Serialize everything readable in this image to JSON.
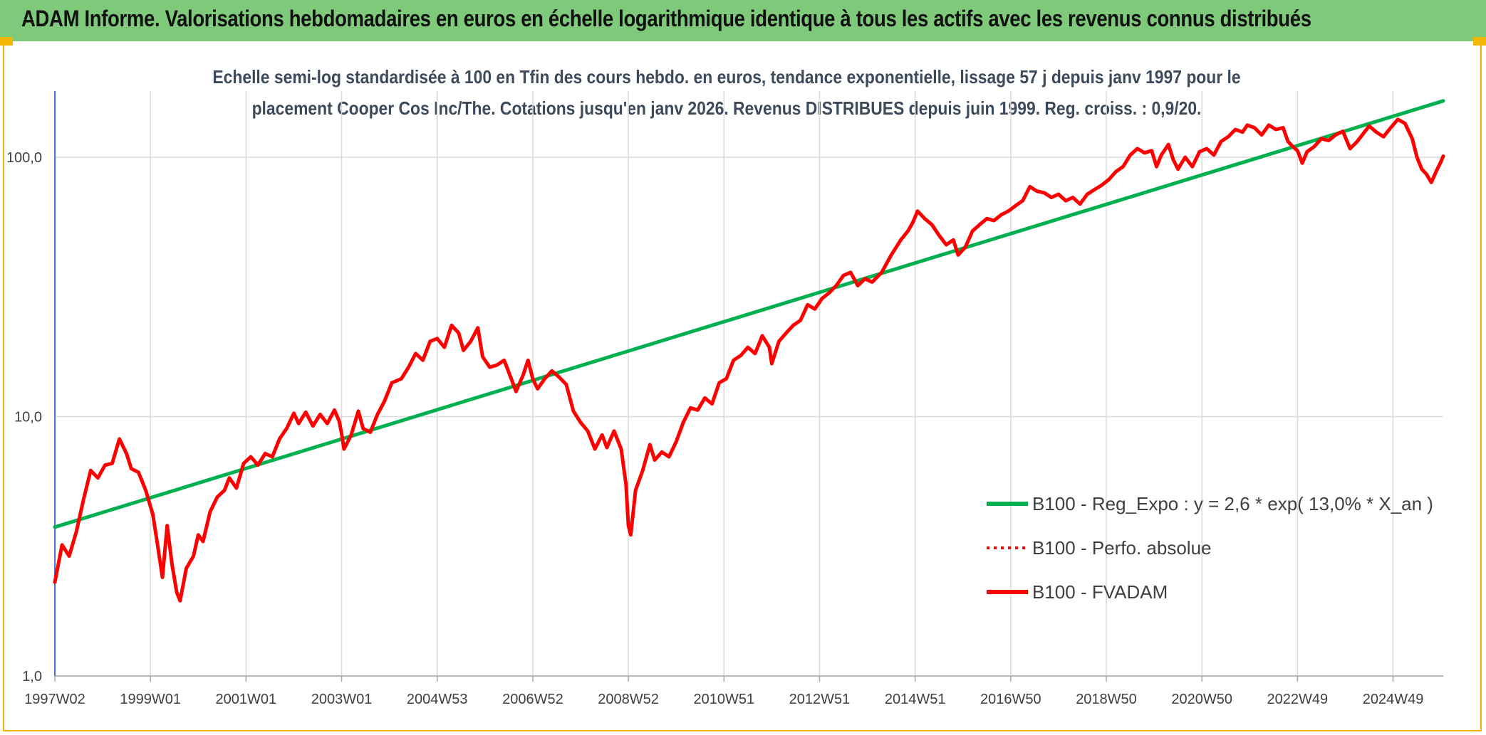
{
  "header": {
    "title": "ADAM Informe. Valorisations hebdomadaires en euros en échelle logarithmique identique à tous les actifs avec les revenus connus distribués"
  },
  "colors": {
    "banner": "#7fca7a",
    "accent_border": "#f2b705",
    "trend_line": "#00b050",
    "price_line": "#ff0000",
    "grid": "#d9d9d9"
  },
  "chart_data": {
    "type": "line",
    "title_line1": "Echelle semi-log standardisée à 100 en Tfin des cours hebdo. en euros, tendance exponentielle, lissage 57 j depuis janv 1997 pour le",
    "title_line2": "placement Cooper Cos Inc/The. Cotations jusqu'en janv 2026. Revenus DISTRIBUES depuis juin 1999. Reg. croiss. : 0,9/20.",
    "y_scale": "log",
    "ylim": [
      1,
      180
    ],
    "y_ticks": [
      {
        "value": 1,
        "label": "1,0"
      },
      {
        "value": 10,
        "label": "10,0"
      },
      {
        "value": 100,
        "label": "100,0"
      }
    ],
    "x_range": [
      1997.0,
      2026.05
    ],
    "x_ticks": [
      {
        "value": 1997.0,
        "label": "1997W02"
      },
      {
        "value": 1999.0,
        "label": "1999W01"
      },
      {
        "value": 2001.0,
        "label": "2001W01"
      },
      {
        "value": 2003.0,
        "label": "2003W01"
      },
      {
        "value": 2005.0,
        "label": "2004W53"
      },
      {
        "value": 2007.0,
        "label": "2006W52"
      },
      {
        "value": 2009.0,
        "label": "2008W52"
      },
      {
        "value": 2011.0,
        "label": "2010W51"
      },
      {
        "value": 2013.0,
        "label": "2012W51"
      },
      {
        "value": 2015.0,
        "label": "2014W51"
      },
      {
        "value": 2017.0,
        "label": "2016W50"
      },
      {
        "value": 2019.0,
        "label": "2018W50"
      },
      {
        "value": 2021.0,
        "label": "2020W50"
      },
      {
        "value": 2023.0,
        "label": "2022W49"
      },
      {
        "value": 2025.0,
        "label": "2024W49"
      }
    ],
    "grid": true,
    "legend_position": "right",
    "series": [
      {
        "name": "B100 - Reg_Expo : y = 2,6 * exp( 13,0% *  X_an )",
        "style": "solid",
        "color": "#00b050",
        "points": [
          [
            1997.0,
            3.75
          ],
          [
            2026.05,
            165
          ]
        ]
      },
      {
        "name": "B100 - Perfo. absolue",
        "style": "dotted",
        "color": "#ff0000",
        "points": []
      },
      {
        "name": "B100 - FVADAM",
        "style": "solid",
        "color": "#ff0000",
        "points": [
          [
            1997.0,
            2.3
          ],
          [
            1997.15,
            3.2
          ],
          [
            1997.3,
            2.9
          ],
          [
            1997.45,
            3.6
          ],
          [
            1997.6,
            4.8
          ],
          [
            1997.75,
            6.2
          ],
          [
            1997.9,
            5.8
          ],
          [
            1998.05,
            6.5
          ],
          [
            1998.2,
            6.6
          ],
          [
            1998.35,
            8.2
          ],
          [
            1998.5,
            7.2
          ],
          [
            1998.6,
            6.3
          ],
          [
            1998.75,
            6.1
          ],
          [
            1998.9,
            5.2
          ],
          [
            1999.05,
            4.2
          ],
          [
            1999.15,
            3.2
          ],
          [
            1999.25,
            2.4
          ],
          [
            1999.35,
            3.8
          ],
          [
            1999.45,
            2.7
          ],
          [
            1999.55,
            2.1
          ],
          [
            1999.62,
            1.95
          ],
          [
            1999.75,
            2.6
          ],
          [
            1999.9,
            2.9
          ],
          [
            2000.0,
            3.5
          ],
          [
            2000.1,
            3.3
          ],
          [
            2000.25,
            4.3
          ],
          [
            2000.4,
            4.9
          ],
          [
            2000.55,
            5.2
          ],
          [
            2000.65,
            5.8
          ],
          [
            2000.8,
            5.3
          ],
          [
            2000.95,
            6.6
          ],
          [
            2001.1,
            7.0
          ],
          [
            2001.25,
            6.5
          ],
          [
            2001.4,
            7.2
          ],
          [
            2001.55,
            7.0
          ],
          [
            2001.7,
            8.2
          ],
          [
            2001.85,
            9.0
          ],
          [
            2002.0,
            10.3
          ],
          [
            2002.1,
            9.4
          ],
          [
            2002.25,
            10.4
          ],
          [
            2002.4,
            9.2
          ],
          [
            2002.55,
            10.2
          ],
          [
            2002.7,
            9.4
          ],
          [
            2002.85,
            10.6
          ],
          [
            2002.95,
            9.6
          ],
          [
            2003.0,
            8.6
          ],
          [
            2003.05,
            7.5
          ],
          [
            2003.2,
            8.5
          ],
          [
            2003.35,
            10.5
          ],
          [
            2003.45,
            9.0
          ],
          [
            2003.6,
            8.7
          ],
          [
            2003.75,
            10.2
          ],
          [
            2003.9,
            11.5
          ],
          [
            2004.05,
            13.5
          ],
          [
            2004.25,
            14.0
          ],
          [
            2004.4,
            15.5
          ],
          [
            2004.55,
            17.5
          ],
          [
            2004.7,
            16.5
          ],
          [
            2004.85,
            19.5
          ],
          [
            2005.0,
            20.0
          ],
          [
            2005.15,
            18.5
          ],
          [
            2005.3,
            22.5
          ],
          [
            2005.45,
            21.0
          ],
          [
            2005.55,
            18.0
          ],
          [
            2005.7,
            19.5
          ],
          [
            2005.85,
            22.0
          ],
          [
            2005.95,
            17.0
          ],
          [
            2006.1,
            15.5
          ],
          [
            2006.25,
            15.8
          ],
          [
            2006.4,
            16.5
          ],
          [
            2006.55,
            14.0
          ],
          [
            2006.65,
            12.5
          ],
          [
            2006.8,
            14.5
          ],
          [
            2006.9,
            16.5
          ],
          [
            2007.0,
            14.0
          ],
          [
            2007.1,
            12.8
          ],
          [
            2007.25,
            14.0
          ],
          [
            2007.4,
            15.0
          ],
          [
            2007.55,
            14.2
          ],
          [
            2007.7,
            13.3
          ],
          [
            2007.85,
            10.5
          ],
          [
            2008.0,
            9.5
          ],
          [
            2008.15,
            8.8
          ],
          [
            2008.3,
            7.5
          ],
          [
            2008.45,
            8.5
          ],
          [
            2008.55,
            7.6
          ],
          [
            2008.7,
            8.8
          ],
          [
            2008.85,
            7.5
          ],
          [
            2008.95,
            5.5
          ],
          [
            2009.0,
            3.8
          ],
          [
            2009.05,
            3.5
          ],
          [
            2009.15,
            5.2
          ],
          [
            2009.3,
            6.2
          ],
          [
            2009.45,
            7.8
          ],
          [
            2009.55,
            6.8
          ],
          [
            2009.7,
            7.3
          ],
          [
            2009.85,
            7.0
          ],
          [
            2010.0,
            8.0
          ],
          [
            2010.15,
            9.5
          ],
          [
            2010.3,
            10.8
          ],
          [
            2010.45,
            10.6
          ],
          [
            2010.6,
            11.8
          ],
          [
            2010.75,
            11.2
          ],
          [
            2010.9,
            13.5
          ],
          [
            2011.05,
            14.0
          ],
          [
            2011.2,
            16.5
          ],
          [
            2011.35,
            17.2
          ],
          [
            2011.5,
            18.5
          ],
          [
            2011.65,
            17.5
          ],
          [
            2011.8,
            20.5
          ],
          [
            2011.95,
            18.5
          ],
          [
            2012.0,
            16.0
          ],
          [
            2012.15,
            19.5
          ],
          [
            2012.3,
            21.0
          ],
          [
            2012.45,
            22.5
          ],
          [
            2012.6,
            23.5
          ],
          [
            2012.75,
            27.0
          ],
          [
            2012.9,
            26.0
          ],
          [
            2013.05,
            28.5
          ],
          [
            2013.2,
            30.0
          ],
          [
            2013.35,
            32.0
          ],
          [
            2013.5,
            35.0
          ],
          [
            2013.65,
            36.0
          ],
          [
            2013.8,
            32.0
          ],
          [
            2013.95,
            34.0
          ],
          [
            2014.1,
            33.0
          ],
          [
            2014.3,
            36.0
          ],
          [
            2014.5,
            42.0
          ],
          [
            2014.7,
            48.0
          ],
          [
            2014.85,
            52.0
          ],
          [
            2014.95,
            56.0
          ],
          [
            2015.05,
            62.0
          ],
          [
            2015.2,
            58.0
          ],
          [
            2015.35,
            55.0
          ],
          [
            2015.5,
            50.0
          ],
          [
            2015.65,
            46.0
          ],
          [
            2015.8,
            48.0
          ],
          [
            2015.9,
            42.0
          ],
          [
            2016.05,
            45.0
          ],
          [
            2016.2,
            52.0
          ],
          [
            2016.35,
            55.0
          ],
          [
            2016.5,
            58.0
          ],
          [
            2016.65,
            57.0
          ],
          [
            2016.8,
            60.0
          ],
          [
            2016.95,
            62.0
          ],
          [
            2017.1,
            65.0
          ],
          [
            2017.25,
            68.0
          ],
          [
            2017.4,
            77.0
          ],
          [
            2017.55,
            74.0
          ],
          [
            2017.7,
            73.0
          ],
          [
            2017.85,
            70.0
          ],
          [
            2018.0,
            72.0
          ],
          [
            2018.15,
            68.0
          ],
          [
            2018.3,
            70.0
          ],
          [
            2018.45,
            66.0
          ],
          [
            2018.6,
            72.0
          ],
          [
            2018.75,
            75.0
          ],
          [
            2018.9,
            78.0
          ],
          [
            2019.05,
            82.0
          ],
          [
            2019.2,
            88.0
          ],
          [
            2019.35,
            92.0
          ],
          [
            2019.5,
            102.0
          ],
          [
            2019.65,
            108.0
          ],
          [
            2019.8,
            104.0
          ],
          [
            2019.95,
            106.0
          ],
          [
            2020.05,
            92.0
          ],
          [
            2020.15,
            102.0
          ],
          [
            2020.3,
            112.0
          ],
          [
            2020.4,
            98.0
          ],
          [
            2020.5,
            90.0
          ],
          [
            2020.65,
            100.0
          ],
          [
            2020.8,
            92.0
          ],
          [
            2020.95,
            105.0
          ],
          [
            2021.1,
            108.0
          ],
          [
            2021.25,
            102.0
          ],
          [
            2021.4,
            115.0
          ],
          [
            2021.55,
            120.0
          ],
          [
            2021.7,
            128.0
          ],
          [
            2021.85,
            125.0
          ],
          [
            2021.95,
            133.0
          ],
          [
            2022.1,
            130.0
          ],
          [
            2022.25,
            122.0
          ],
          [
            2022.4,
            133.0
          ],
          [
            2022.55,
            128.0
          ],
          [
            2022.7,
            130.0
          ],
          [
            2022.8,
            115.0
          ],
          [
            2022.9,
            110.0
          ],
          [
            2023.0,
            106.0
          ],
          [
            2023.1,
            95.0
          ],
          [
            2023.2,
            105.0
          ],
          [
            2023.35,
            110.0
          ],
          [
            2023.5,
            118.0
          ],
          [
            2023.65,
            116.0
          ],
          [
            2023.8,
            122.0
          ],
          [
            2023.95,
            126.0
          ],
          [
            2024.1,
            108.0
          ],
          [
            2024.25,
            115.0
          ],
          [
            2024.4,
            125.0
          ],
          [
            2024.5,
            132.0
          ],
          [
            2024.65,
            125.0
          ],
          [
            2024.8,
            120.0
          ],
          [
            2024.95,
            130.0
          ],
          [
            2025.1,
            140.0
          ],
          [
            2025.25,
            135.0
          ],
          [
            2025.4,
            118.0
          ],
          [
            2025.5,
            100.0
          ],
          [
            2025.6,
            90.0
          ],
          [
            2025.7,
            86.0
          ],
          [
            2025.8,
            80.0
          ],
          [
            2025.9,
            88.0
          ],
          [
            2026.0,
            96.0
          ],
          [
            2026.05,
            101.0
          ]
        ]
      }
    ]
  }
}
